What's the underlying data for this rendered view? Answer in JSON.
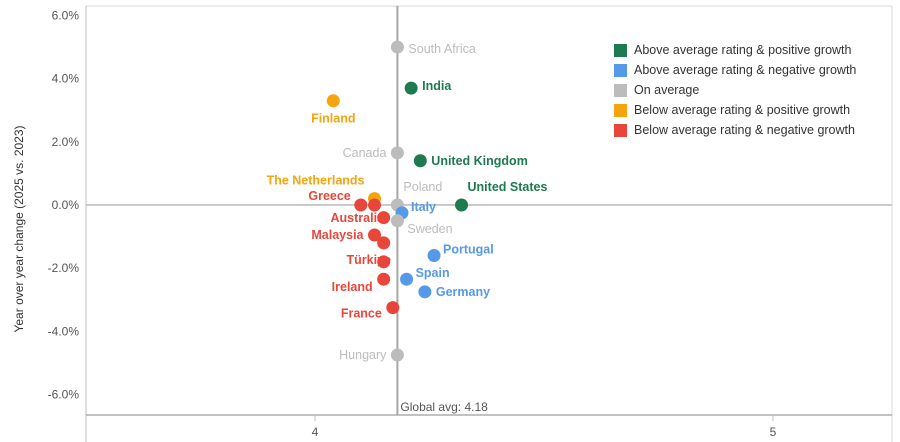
{
  "chart_data": {
    "type": "scatter",
    "xlabel": "",
    "ylabel": "Year over year change (2025 vs. 2023)",
    "xlim": [
      3.5,
      5.26
    ],
    "ylim": [
      -6.65,
      6.3
    ],
    "x_ticks": [
      {
        "value": 4,
        "label": "4"
      },
      {
        "value": 5,
        "label": "5"
      }
    ],
    "y_ticks": [
      {
        "value": 6,
        "label": "6.0%"
      },
      {
        "value": 4,
        "label": "4.0%"
      },
      {
        "value": 2,
        "label": "2.0%"
      },
      {
        "value": 0,
        "label": "0.0%"
      },
      {
        "value": -2,
        "label": "-2.0%"
      },
      {
        "value": -4,
        "label": "-4.0%"
      },
      {
        "value": -6,
        "label": "-6.0%"
      }
    ],
    "reference_line": {
      "x": 4.18,
      "label": "Global avg: 4.18"
    },
    "categories": {
      "above_pos": {
        "label": "Above average rating & positive growth",
        "color": "#1e7a4f"
      },
      "above_neg": {
        "label": "Above average rating & negative growth",
        "color": "#5599e8"
      },
      "average": {
        "label": "On average",
        "color": "#bcbcbc"
      },
      "below_pos": {
        "label": "Below average rating & positive growth",
        "color": "#f5a40e"
      },
      "below_neg": {
        "label": "Below average rating & negative growth",
        "color": "#e8463a"
      }
    },
    "legend_order": [
      "above_pos",
      "above_neg",
      "average",
      "below_pos",
      "below_neg"
    ],
    "points": [
      {
        "label": "South Africa",
        "x": 4.18,
        "y": 5.0,
        "cat": "average",
        "anchor": "right",
        "dy": 2
      },
      {
        "label": "India",
        "x": 4.21,
        "y": 3.7,
        "cat": "above_pos",
        "anchor": "right",
        "dy": -2
      },
      {
        "label": "Finland",
        "x": 4.04,
        "y": 3.3,
        "cat": "below_pos",
        "anchor": "below"
      },
      {
        "label": "Canada",
        "x": 4.18,
        "y": 1.65,
        "cat": "average",
        "anchor": "left"
      },
      {
        "label": "United Kingdom",
        "x": 4.23,
        "y": 1.4,
        "cat": "above_pos",
        "anchor": "right"
      },
      {
        "label": "The Netherlands",
        "x": 4.13,
        "y": 0.2,
        "cat": "below_pos",
        "anchor": "aboveleft"
      },
      {
        "label": "Poland",
        "x": 4.18,
        "y": 0.0,
        "cat": "average",
        "anchor": "aboveright"
      },
      {
        "label": "United States",
        "x": 4.32,
        "y": 0.0,
        "cat": "above_pos",
        "anchor": "aboveright"
      },
      {
        "label": "Greece",
        "x": 4.1,
        "y": 0.0,
        "cat": "below_neg",
        "anchor": "leftup"
      },
      {
        "label": "",
        "x": 4.13,
        "y": 0.0,
        "cat": "below_neg",
        "anchor": "none"
      },
      {
        "label": "Italy",
        "x": 4.19,
        "y": -0.25,
        "cat": "above_neg",
        "anchor": "rightup"
      },
      {
        "label": "Australia",
        "x": 4.15,
        "y": -0.4,
        "cat": "below_neg",
        "anchor": "custom",
        "tx": 384,
        "ty": 222,
        "ta": "end"
      },
      {
        "label": "Sweden",
        "x": 4.18,
        "y": -0.5,
        "cat": "average",
        "anchor": "rightdown"
      },
      {
        "label": "Malaysia",
        "x": 4.13,
        "y": -0.95,
        "cat": "below_neg",
        "anchor": "left"
      },
      {
        "label": "",
        "x": 4.15,
        "y": -1.2,
        "cat": "below_neg",
        "anchor": "none"
      },
      {
        "label": "Portugal",
        "x": 4.26,
        "y": -1.6,
        "cat": "above_neg",
        "anchor": "rightup"
      },
      {
        "label": "Türkiye",
        "x": 4.15,
        "y": -1.8,
        "cat": "below_neg",
        "anchor": "custom",
        "tx": 391,
        "ty": 264,
        "ta": "end"
      },
      {
        "label": "Spain",
        "x": 4.2,
        "y": -2.35,
        "cat": "above_neg",
        "anchor": "rightup"
      },
      {
        "label": "Ireland",
        "x": 4.15,
        "y": -2.35,
        "cat": "below_neg",
        "anchor": "left",
        "dy": 8
      },
      {
        "label": "Germany",
        "x": 4.24,
        "y": -2.75,
        "cat": "above_neg",
        "anchor": "right"
      },
      {
        "label": "France",
        "x": 4.17,
        "y": -3.25,
        "cat": "below_neg",
        "anchor": "left",
        "dy": 6
      },
      {
        "label": "Hungary",
        "x": 4.18,
        "y": -4.75,
        "cat": "average",
        "anchor": "left"
      }
    ]
  }
}
